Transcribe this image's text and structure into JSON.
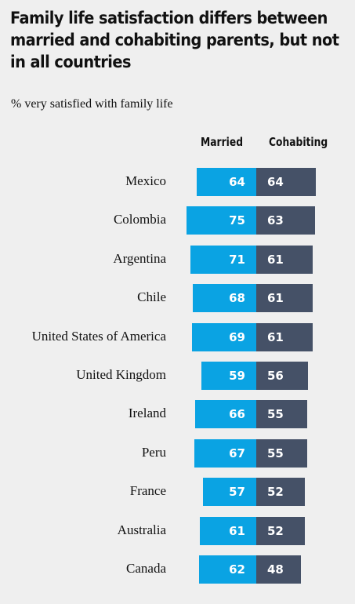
{
  "title": "Family life satisfaction differs between married and cohabiting parents, but not in all countries",
  "subtitle": "% very satisfied with family life",
  "colors": {
    "married": "#0aa3e3",
    "cohabiting": "#455167",
    "background": "#efefef"
  },
  "chart_data": {
    "type": "bar",
    "title": "Family life satisfaction differs between married and cohabiting parents, but not in all countries",
    "subtitle": "% very satisfied with family life",
    "orientation": "horizontal-diverging",
    "categories": [
      "Mexico",
      "Colombia",
      "Argentina",
      "Chile",
      "United States of America",
      "United Kingdom",
      "Ireland",
      "Peru",
      "France",
      "Australia",
      "Canada"
    ],
    "series": [
      {
        "name": "Married",
        "values": [
          64,
          75,
          71,
          68,
          69,
          59,
          66,
          67,
          57,
          61,
          62
        ]
      },
      {
        "name": "Cohabiting",
        "values": [
          64,
          63,
          61,
          61,
          61,
          56,
          55,
          55,
          52,
          52,
          48
        ]
      }
    ],
    "legend": "top, as column headers"
  }
}
